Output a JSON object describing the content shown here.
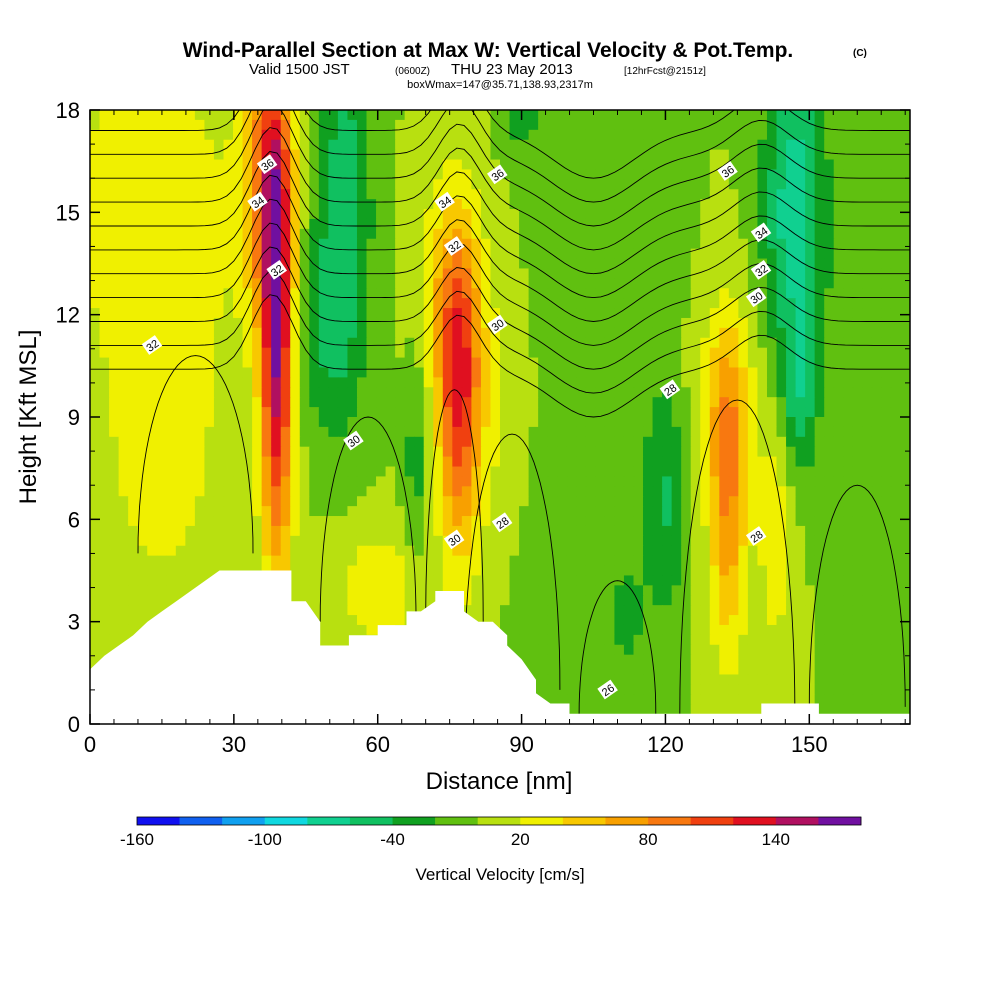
{
  "header": {
    "title": "Wind-Parallel Section at Max W: Vertical Velocity & Pot.Temp.",
    "title_mark": "(C)",
    "valid_prefix": "Valid 1500 JST",
    "valid_utc": "(0600Z)",
    "valid_date": "THU 23 May 2013",
    "forecast": "[12hrFcst@2151z]",
    "box_info": "boxWmax=147@35.71,138.93,2317m"
  },
  "chart_data": {
    "type": "heatmap",
    "xlabel": "Distance [nm]",
    "ylabel": "Height [Kft MSL]",
    "xlim": [
      0,
      171
    ],
    "ylim": [
      0,
      18
    ],
    "x_ticks": [
      0,
      30,
      60,
      90,
      120,
      150
    ],
    "y_ticks": [
      0,
      3,
      6,
      9,
      12,
      15,
      18
    ],
    "colorbar": {
      "title": "Vertical Velocity [cm/s]",
      "tick_labels": [
        "-160",
        "-100",
        "-40",
        "20",
        "80",
        "140"
      ],
      "levels": [
        -160,
        -140,
        -120,
        -100,
        -80,
        -60,
        -40,
        -20,
        0,
        20,
        40,
        60,
        80,
        100,
        120,
        140,
        160
      ],
      "colors": [
        "#1010f0",
        "#1060f0",
        "#10a0f0",
        "#10d8e0",
        "#10d090",
        "#10c060",
        "#10a020",
        "#60c010",
        "#b8e010",
        "#f0f000",
        "#f8c800",
        "#f8a000",
        "#f87810",
        "#f04010",
        "#e01020",
        "#b01060",
        "#7010a0"
      ]
    },
    "w_field": {
      "background_cm_s": 0,
      "features": [
        {
          "x": 39,
          "y": 11.0,
          "sx": 2.3,
          "sy": 4.5,
          "w": 150
        },
        {
          "x": 37,
          "y": 16.0,
          "sx": 3.5,
          "sy": 3.0,
          "w": 90
        },
        {
          "x": 77,
          "y": 9.5,
          "sx": 3.0,
          "sy": 3.2,
          "w": 105
        },
        {
          "x": 75,
          "y": 12.5,
          "sx": 5.0,
          "sy": 2.5,
          "w": 45
        },
        {
          "x": 133,
          "y": 6.5,
          "sx": 2.8,
          "sy": 3.2,
          "w": 75
        },
        {
          "x": 133,
          "y": 9.5,
          "sx": 5.0,
          "sy": 2.0,
          "w": 35
        },
        {
          "x": 143,
          "y": 5.5,
          "sx": 2.5,
          "sy": 2.5,
          "w": 35
        },
        {
          "x": 15,
          "y": 8.5,
          "sx": 10.0,
          "sy": 4.0,
          "w": 30
        },
        {
          "x": 12,
          "y": 15.5,
          "sx": 14.0,
          "sy": 3.0,
          "w": 32
        },
        {
          "x": 60,
          "y": 4.0,
          "sx": 7.0,
          "sy": 1.3,
          "w": 35
        },
        {
          "x": 85,
          "y": 9.0,
          "sx": 6.0,
          "sy": 3.0,
          "w": 20
        },
        {
          "x": 53,
          "y": 15.0,
          "sx": 4.0,
          "sy": 4.0,
          "w": -55
        },
        {
          "x": 48,
          "y": 11.5,
          "sx": 4.0,
          "sy": 2.0,
          "w": -30
        },
        {
          "x": 147,
          "y": 15.0,
          "sx": 4.5,
          "sy": 3.5,
          "w": -75
        },
        {
          "x": 148,
          "y": 9.5,
          "sx": 2.5,
          "sy": 1.5,
          "w": -40
        },
        {
          "x": 120,
          "y": 6.5,
          "sx": 3.0,
          "sy": 2.5,
          "w": -40
        },
        {
          "x": 112,
          "y": 3.0,
          "sx": 3.0,
          "sy": 1.5,
          "w": -25
        },
        {
          "x": 68,
          "y": 8.0,
          "sx": 2.0,
          "sy": 2.5,
          "w": -30
        },
        {
          "x": 90,
          "y": 17.8,
          "sx": 3.0,
          "sy": 0.8,
          "w": -30
        },
        {
          "x": 105,
          "y": 11.5,
          "sx": 10.0,
          "sy": 4.0,
          "w": -15
        },
        {
          "x": 165,
          "y": 11.0,
          "sx": 6.0,
          "sy": 3.0,
          "w": -12
        },
        {
          "x": 95,
          "y": 4.0,
          "sx": 5.0,
          "sy": 3.0,
          "w": -15
        }
      ]
    },
    "terrain_kft": [
      [
        0,
        1.6
      ],
      [
        3,
        2.0
      ],
      [
        6,
        2.3
      ],
      [
        9,
        2.6
      ],
      [
        12,
        3.0
      ],
      [
        15,
        3.3
      ],
      [
        18,
        3.6
      ],
      [
        21,
        3.9
      ],
      [
        24,
        4.2
      ],
      [
        27,
        4.5
      ],
      [
        30,
        4.5
      ],
      [
        35,
        4.5
      ],
      [
        42,
        4.5
      ],
      [
        42,
        3.6
      ],
      [
        45,
        3.6
      ],
      [
        48,
        3.0
      ],
      [
        48,
        2.3
      ],
      [
        51,
        2.3
      ],
      [
        54,
        2.3
      ],
      [
        54,
        2.6
      ],
      [
        57,
        2.6
      ],
      [
        60,
        2.6
      ],
      [
        60,
        2.9
      ],
      [
        63,
        2.9
      ],
      [
        66,
        2.9
      ],
      [
        66,
        3.3
      ],
      [
        69,
        3.3
      ],
      [
        72,
        3.6
      ],
      [
        72,
        3.9
      ],
      [
        78,
        3.9
      ],
      [
        78,
        3.3
      ],
      [
        81,
        3.0
      ],
      [
        84,
        3.0
      ],
      [
        87,
        2.6
      ],
      [
        87,
        2.3
      ],
      [
        90,
        1.9
      ],
      [
        93,
        1.3
      ],
      [
        93,
        0.9
      ],
      [
        96,
        0.6
      ],
      [
        100,
        0.6
      ],
      [
        100,
        0.3
      ],
      [
        140,
        0.3
      ],
      [
        140,
        0.6
      ],
      [
        152,
        0.6
      ],
      [
        152,
        0.3
      ],
      [
        171,
        0.3
      ]
    ],
    "theta_isolines": [
      {
        "label": "36",
        "label_x": 85,
        "label_y": 16.1
      },
      {
        "label": "36",
        "label_x": 133,
        "label_y": 16.2
      },
      {
        "label": "36",
        "label_x": 37,
        "label_y": 16.4
      },
      {
        "label": "34",
        "label_x": 35,
        "label_y": 15.3
      },
      {
        "label": "34",
        "label_x": 74,
        "label_y": 15.3
      },
      {
        "label": "34",
        "label_x": 140,
        "label_y": 14.4
      },
      {
        "label": "32",
        "label_x": 13,
        "label_y": 11.1
      },
      {
        "label": "32",
        "label_x": 39,
        "label_y": 13.3
      },
      {
        "label": "32",
        "label_x": 76,
        "label_y": 14.0
      },
      {
        "label": "32",
        "label_x": 140,
        "label_y": 13.3
      },
      {
        "label": "30",
        "label_x": 85,
        "label_y": 11.7
      },
      {
        "label": "30",
        "label_x": 139,
        "label_y": 12.5
      },
      {
        "label": "30",
        "label_x": 55,
        "label_y": 8.3
      },
      {
        "label": "30",
        "label_x": 76,
        "label_y": 5.4
      },
      {
        "label": "28",
        "label_x": 121,
        "label_y": 9.8
      },
      {
        "label": "28",
        "label_x": 86,
        "label_y": 5.9
      },
      {
        "label": "28",
        "label_x": 139,
        "label_y": 5.5
      },
      {
        "label": "26",
        "label_x": 108,
        "label_y": 1.0
      }
    ]
  }
}
